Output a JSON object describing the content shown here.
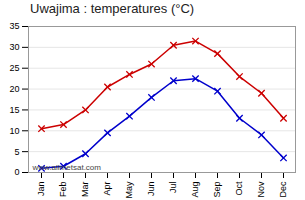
{
  "chart_data": {
    "type": "line",
    "title": "Uwajima : temperatures (°C)",
    "categories": [
      "Jan",
      "Feb",
      "Mar",
      "Apr",
      "May",
      "Jun",
      "Jul",
      "Aug",
      "Sep",
      "Oct",
      "Nov",
      "Dec"
    ],
    "series": [
      {
        "color": "#cc0000",
        "marker": "x",
        "values": [
          10.5,
          11.5,
          15.0,
          20.5,
          23.5,
          26.0,
          30.5,
          31.5,
          28.5,
          23.0,
          19.0,
          13.0
        ]
      },
      {
        "color": "#0000cc",
        "marker": "x",
        "values": [
          1.0,
          1.5,
          4.5,
          9.5,
          13.5,
          18.0,
          22.0,
          22.5,
          19.5,
          13.0,
          9.0,
          3.5
        ]
      }
    ],
    "ylim": [
      0,
      35
    ],
    "yticks": [
      0,
      5,
      10,
      15,
      20,
      25,
      30,
      35
    ],
    "grid": true,
    "annotation": "www.allmetsat.com"
  }
}
